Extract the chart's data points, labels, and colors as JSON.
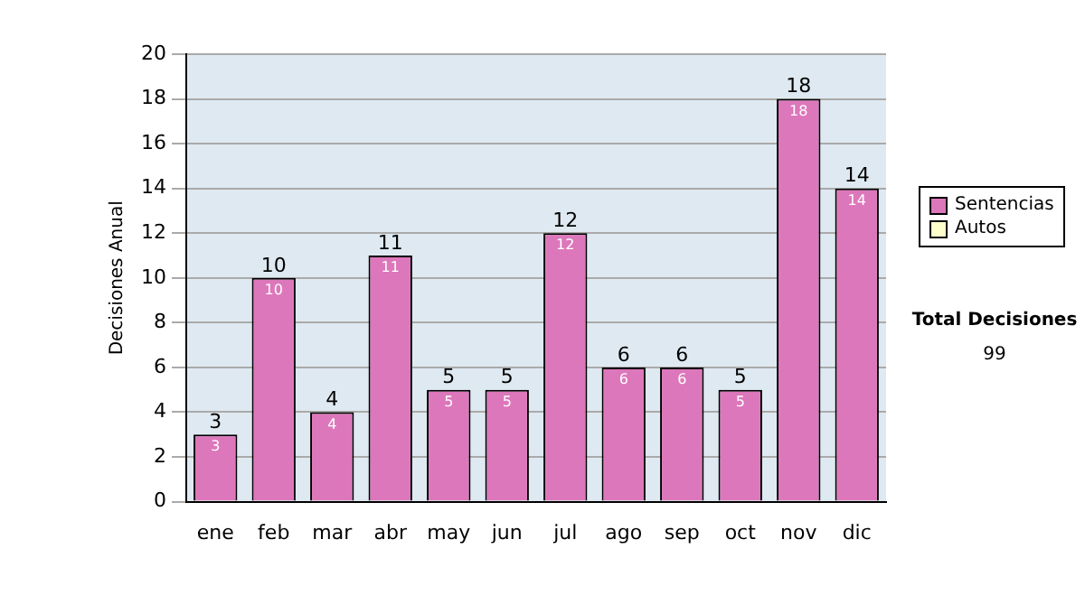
{
  "chart_data": {
    "type": "bar",
    "stacked": true,
    "ylabel": "Decisiones Anual",
    "categories": [
      "ene",
      "feb",
      "mar",
      "abr",
      "may",
      "jun",
      "jul",
      "ago",
      "sep",
      "oct",
      "nov",
      "dic"
    ],
    "series": [
      {
        "name": "Sentencias",
        "color": "#dd77bb",
        "values": [
          3,
          10,
          4,
          11,
          5,
          5,
          12,
          6,
          6,
          5,
          18,
          14
        ],
        "value_labels": [
          "3",
          "10",
          "4",
          "11",
          "5",
          "5",
          "12",
          "6",
          "6",
          "5",
          "18",
          "14"
        ]
      },
      {
        "name": "Autos",
        "color": "#ffffcc",
        "values": [
          0,
          0,
          0,
          0,
          0,
          0,
          0,
          0,
          0,
          0,
          0,
          0
        ]
      }
    ],
    "totals": [
      "3",
      "10",
      "4",
      "11",
      "5",
      "5",
      "12",
      "6",
      "6",
      "5",
      "18",
      "14"
    ],
    "ylim": [
      0,
      20
    ],
    "yticks": [
      0,
      2,
      4,
      6,
      8,
      10,
      12,
      14,
      16,
      18,
      20
    ],
    "grid": "y",
    "legend": "right",
    "annotations": [
      "Total Decisiones",
      "99"
    ]
  }
}
